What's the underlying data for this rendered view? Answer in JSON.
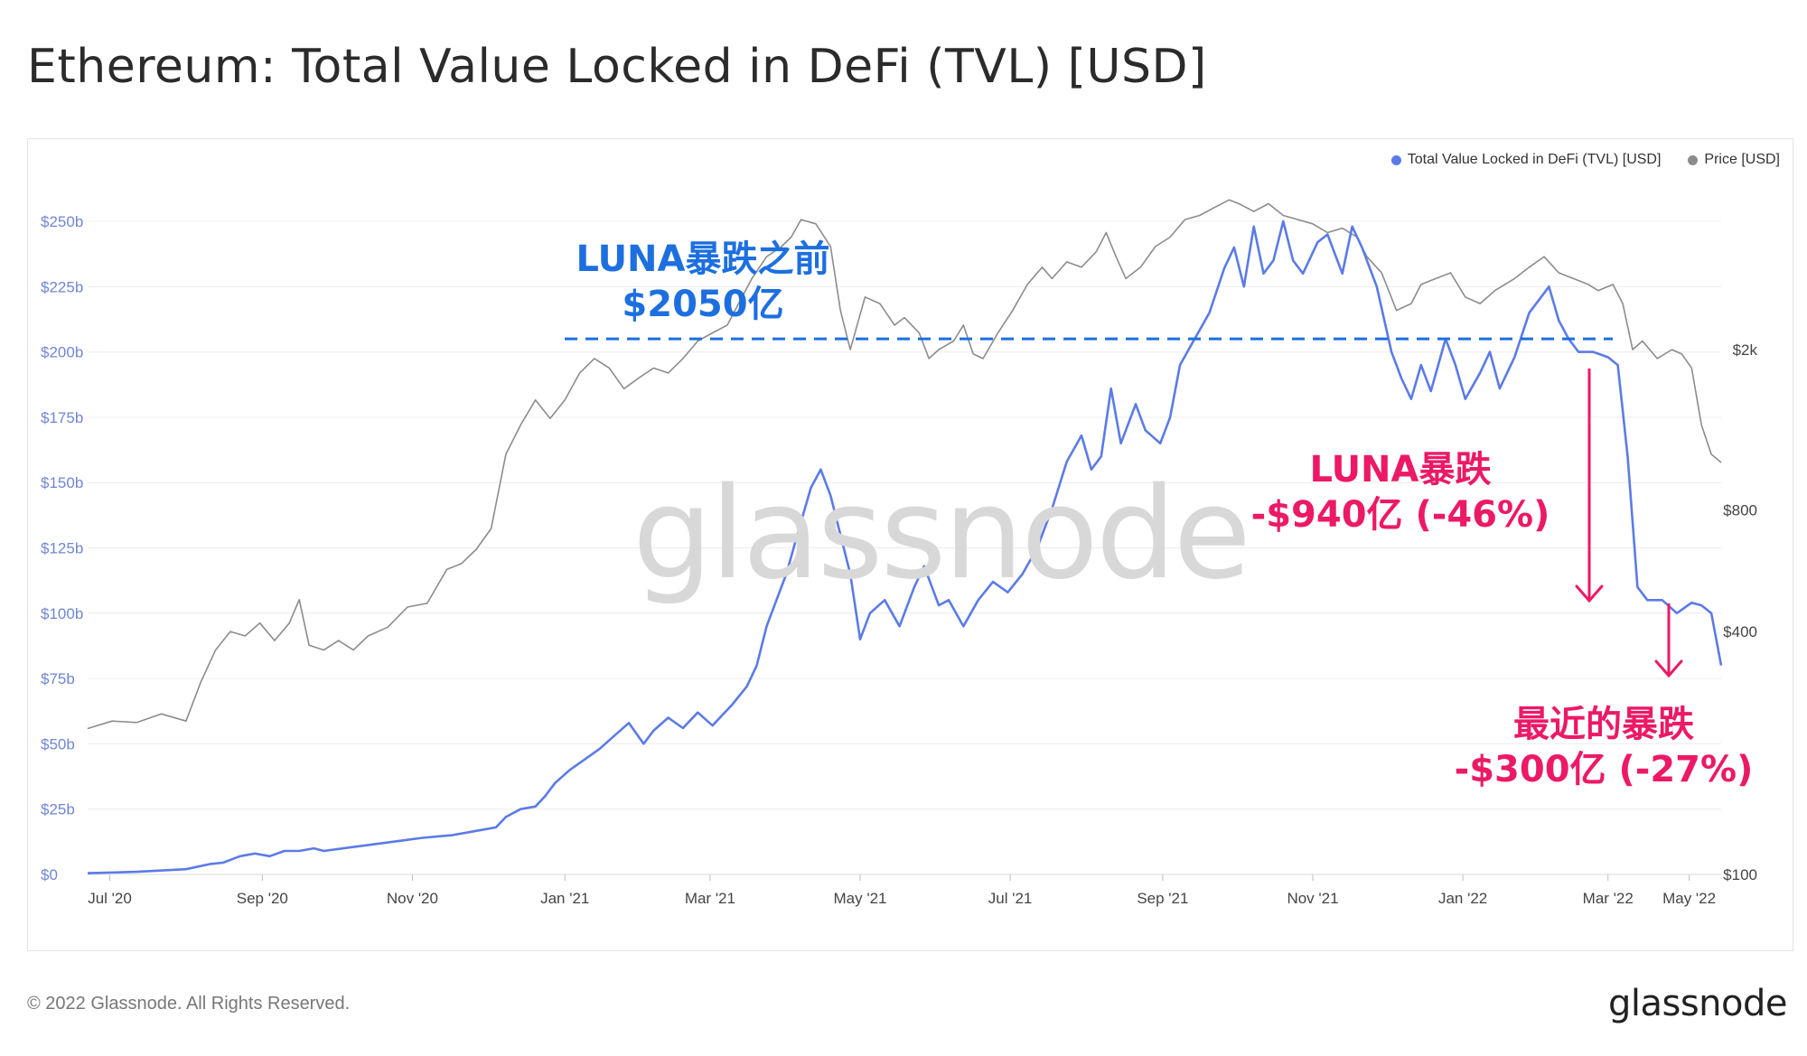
{
  "header": {
    "title": "Ethereum: Total Value Locked in DeFi (TVL) [USD]"
  },
  "footer": {
    "copyright": "© 2022 Glassnode. All Rights Reserved.",
    "brand": "glassnode"
  },
  "watermark": "glassnode",
  "legend": {
    "tvl": "Total Value Locked in DeFi (TVL) [USD]",
    "price": "Price [USD]"
  },
  "annotations": {
    "before": {
      "line1": "LUNA暴跌之前",
      "line2": "$2050亿"
    },
    "luna": {
      "line1": "LUNA暴跌",
      "line2": "-$940亿 (-46%)"
    },
    "recent": {
      "line1": "最近的暴跌",
      "line2": "-$300亿 (-27%)"
    }
  },
  "colors": {
    "tvl": "#5b7be6",
    "price": "#8c8c8c",
    "before": "#1d6fe0",
    "crash": "#ec1966",
    "axis_left": "#6f86d6"
  },
  "chart_data": {
    "type": "line",
    "x_ticks": [
      "Jul '20",
      "Sep '20",
      "Nov '20",
      "Jan '21",
      "Mar '21",
      "May '21",
      "Jul '21",
      "Sep '21",
      "Nov '21",
      "Jan '22",
      "Mar '22",
      "May '22"
    ],
    "y_left": {
      "ticks": [
        "$0",
        "$25b",
        "$50b",
        "$75b",
        "$100b",
        "$125b",
        "$150b",
        "$175b",
        "$200b",
        "$225b",
        "$250b"
      ],
      "range": [
        0,
        250
      ]
    },
    "y_right": {
      "ticks": [
        "$100",
        "$400",
        "$800",
        "$2k"
      ],
      "values": [
        100,
        400,
        800,
        2000
      ],
      "scale": "log"
    },
    "grid": true,
    "series": [
      {
        "name": "Total Value Locked in DeFi (TVL) [USD]",
        "unit": "billion USD",
        "points": [
          [
            0,
            0.5
          ],
          [
            20,
            1
          ],
          [
            40,
            2
          ],
          [
            50,
            4
          ],
          [
            55,
            4.5
          ],
          [
            62,
            7
          ],
          [
            68,
            8
          ],
          [
            74,
            7
          ],
          [
            80,
            9
          ],
          [
            86,
            9
          ],
          [
            92,
            10
          ],
          [
            96,
            9
          ],
          [
            104,
            10
          ],
          [
            112,
            11
          ],
          [
            120,
            12
          ],
          [
            128,
            13
          ],
          [
            136,
            14
          ],
          [
            148,
            15
          ],
          [
            160,
            17
          ],
          [
            166,
            18
          ],
          [
            170,
            22
          ],
          [
            176,
            25
          ],
          [
            182,
            26
          ],
          [
            186,
            30
          ],
          [
            190,
            35
          ],
          [
            196,
            40
          ],
          [
            202,
            44
          ],
          [
            208,
            48
          ],
          [
            214,
            53
          ],
          [
            220,
            58
          ],
          [
            226,
            50
          ],
          [
            230,
            55
          ],
          [
            236,
            60
          ],
          [
            242,
            56
          ],
          [
            248,
            62
          ],
          [
            254,
            57
          ],
          [
            262,
            65
          ],
          [
            268,
            72
          ],
          [
            272,
            80
          ],
          [
            276,
            95
          ],
          [
            280,
            105
          ],
          [
            284,
            115
          ],
          [
            290,
            135
          ],
          [
            294,
            148
          ],
          [
            298,
            155
          ],
          [
            302,
            145
          ],
          [
            306,
            130
          ],
          [
            310,
            115
          ],
          [
            314,
            90
          ],
          [
            318,
            100
          ],
          [
            324,
            105
          ],
          [
            330,
            95
          ],
          [
            336,
            110
          ],
          [
            340,
            118
          ],
          [
            346,
            103
          ],
          [
            350,
            105
          ],
          [
            356,
            95
          ],
          [
            362,
            105
          ],
          [
            368,
            112
          ],
          [
            374,
            108
          ],
          [
            380,
            115
          ],
          [
            386,
            125
          ],
          [
            392,
            140
          ],
          [
            398,
            158
          ],
          [
            404,
            168
          ],
          [
            408,
            155
          ],
          [
            412,
            160
          ],
          [
            416,
            186
          ],
          [
            420,
            165
          ],
          [
            426,
            180
          ],
          [
            430,
            170
          ],
          [
            436,
            165
          ],
          [
            440,
            175
          ],
          [
            444,
            195
          ],
          [
            450,
            205
          ],
          [
            456,
            215
          ],
          [
            462,
            232
          ],
          [
            466,
            240
          ],
          [
            470,
            225
          ],
          [
            474,
            248
          ],
          [
            478,
            230
          ],
          [
            482,
            235
          ],
          [
            486,
            250
          ],
          [
            490,
            235
          ],
          [
            494,
            230
          ],
          [
            500,
            242
          ],
          [
            504,
            245
          ],
          [
            510,
            230
          ],
          [
            514,
            248
          ],
          [
            518,
            240
          ],
          [
            524,
            225
          ],
          [
            530,
            200
          ],
          [
            534,
            190
          ],
          [
            538,
            182
          ],
          [
            542,
            195
          ],
          [
            546,
            185
          ],
          [
            552,
            205
          ],
          [
            556,
            195
          ],
          [
            560,
            182
          ],
          [
            566,
            192
          ],
          [
            570,
            200
          ],
          [
            574,
            186
          ],
          [
            580,
            198
          ],
          [
            586,
            215
          ],
          [
            590,
            220
          ],
          [
            594,
            225
          ],
          [
            598,
            212
          ],
          [
            602,
            205
          ],
          [
            606,
            200
          ],
          [
            612,
            200
          ],
          [
            618,
            198
          ],
          [
            622,
            195
          ],
          [
            626,
            160
          ],
          [
            630,
            110
          ],
          [
            634,
            105
          ],
          [
            640,
            105
          ],
          [
            646,
            100
          ],
          [
            652,
            104
          ],
          [
            656,
            103
          ],
          [
            660,
            100
          ],
          [
            664,
            80
          ]
        ]
      },
      {
        "name": "Price [USD]",
        "unit": "USD",
        "points": [
          [
            0,
            230
          ],
          [
            10,
            240
          ],
          [
            20,
            238
          ],
          [
            30,
            250
          ],
          [
            40,
            240
          ],
          [
            46,
            300
          ],
          [
            52,
            360
          ],
          [
            58,
            400
          ],
          [
            64,
            390
          ],
          [
            70,
            420
          ],
          [
            76,
            380
          ],
          [
            82,
            420
          ],
          [
            86,
            480
          ],
          [
            90,
            370
          ],
          [
            96,
            360
          ],
          [
            102,
            380
          ],
          [
            108,
            360
          ],
          [
            114,
            390
          ],
          [
            122,
            410
          ],
          [
            130,
            460
          ],
          [
            138,
            470
          ],
          [
            146,
            570
          ],
          [
            152,
            590
          ],
          [
            158,
            640
          ],
          [
            164,
            720
          ],
          [
            170,
            1100
          ],
          [
            176,
            1300
          ],
          [
            182,
            1500
          ],
          [
            188,
            1350
          ],
          [
            194,
            1500
          ],
          [
            200,
            1750
          ],
          [
            206,
            1900
          ],
          [
            212,
            1800
          ],
          [
            218,
            1600
          ],
          [
            224,
            1700
          ],
          [
            230,
            1800
          ],
          [
            236,
            1750
          ],
          [
            242,
            1900
          ],
          [
            248,
            2100
          ],
          [
            254,
            2200
          ],
          [
            260,
            2300
          ],
          [
            266,
            2700
          ],
          [
            270,
            3000
          ],
          [
            276,
            3400
          ],
          [
            282,
            3600
          ],
          [
            286,
            3800
          ],
          [
            290,
            4200
          ],
          [
            296,
            4100
          ],
          [
            302,
            3600
          ],
          [
            306,
            2500
          ],
          [
            310,
            2000
          ],
          [
            316,
            2700
          ],
          [
            322,
            2600
          ],
          [
            328,
            2300
          ],
          [
            332,
            2400
          ],
          [
            338,
            2200
          ],
          [
            342,
            1900
          ],
          [
            346,
            2000
          ],
          [
            352,
            2100
          ],
          [
            356,
            2300
          ],
          [
            360,
            1950
          ],
          [
            364,
            1900
          ],
          [
            370,
            2200
          ],
          [
            376,
            2500
          ],
          [
            382,
            2900
          ],
          [
            388,
            3200
          ],
          [
            392,
            3000
          ],
          [
            398,
            3300
          ],
          [
            404,
            3200
          ],
          [
            410,
            3500
          ],
          [
            414,
            3900
          ],
          [
            418,
            3400
          ],
          [
            422,
            3000
          ],
          [
            428,
            3200
          ],
          [
            434,
            3600
          ],
          [
            440,
            3800
          ],
          [
            446,
            4200
          ],
          [
            452,
            4300
          ],
          [
            458,
            4500
          ],
          [
            464,
            4700
          ],
          [
            468,
            4600
          ],
          [
            474,
            4400
          ],
          [
            480,
            4600
          ],
          [
            486,
            4300
          ],
          [
            492,
            4200
          ],
          [
            498,
            4100
          ],
          [
            504,
            3900
          ],
          [
            510,
            4000
          ],
          [
            516,
            3800
          ],
          [
            520,
            3400
          ],
          [
            526,
            3100
          ],
          [
            532,
            2500
          ],
          [
            538,
            2600
          ],
          [
            542,
            2900
          ],
          [
            548,
            3000
          ],
          [
            554,
            3100
          ],
          [
            560,
            2700
          ],
          [
            566,
            2600
          ],
          [
            572,
            2800
          ],
          [
            580,
            3000
          ],
          [
            586,
            3200
          ],
          [
            592,
            3400
          ],
          [
            598,
            3100
          ],
          [
            604,
            3000
          ],
          [
            610,
            2900
          ],
          [
            614,
            2800
          ],
          [
            620,
            2900
          ],
          [
            624,
            2600
          ],
          [
            628,
            2000
          ],
          [
            632,
            2100
          ],
          [
            638,
            1900
          ],
          [
            644,
            2000
          ],
          [
            648,
            1950
          ],
          [
            652,
            1800
          ],
          [
            656,
            1300
          ],
          [
            660,
            1100
          ],
          [
            664,
            1050
          ]
        ]
      }
    ],
    "reference_line": {
      "value": 205,
      "label": "$2050亿"
    }
  }
}
